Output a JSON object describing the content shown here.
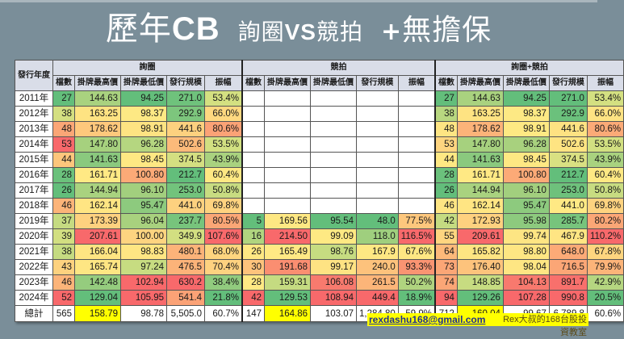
{
  "title": {
    "part1": "歷年",
    "part_cb": "CB",
    "part2": "詢圈",
    "part_vs": "VS",
    "part3": "競拍",
    "plus": "+",
    "part4": "無擔保"
  },
  "table": {
    "year_header": "發行年度",
    "groups": [
      "詢圈",
      "競拍",
      "詢圈+競拍"
    ],
    "columns": [
      "檔數",
      "掛牌最高價",
      "掛牌最低價",
      "發行規模",
      "振幅"
    ],
    "rows": [
      {
        "year": "2011年",
        "g1": [
          "27",
          "144.63",
          "94.25",
          "271.0",
          "53.4%"
        ],
        "g2": [
          "",
          "",
          "",
          "",
          ""
        ],
        "g3": [
          "27",
          "144.63",
          "94.25",
          "271.0",
          "53.4%"
        ]
      },
      {
        "year": "2012年",
        "g1": [
          "38",
          "163.25",
          "98.37",
          "292.9",
          "66.0%"
        ],
        "g2": [
          "",
          "",
          "",
          "",
          ""
        ],
        "g3": [
          "38",
          "163.25",
          "98.37",
          "292.9",
          "66.0%"
        ]
      },
      {
        "year": "2013年",
        "g1": [
          "48",
          "178.62",
          "98.91",
          "441.6",
          "80.6%"
        ],
        "g2": [
          "",
          "",
          "",
          "",
          ""
        ],
        "g3": [
          "48",
          "178.62",
          "98.91",
          "441.6",
          "80.6%"
        ]
      },
      {
        "year": "2014年",
        "g1": [
          "53",
          "147.80",
          "96.28",
          "502.6",
          "53.5%"
        ],
        "g2": [
          "",
          "",
          "",
          "",
          ""
        ],
        "g3": [
          "53",
          "147.80",
          "96.28",
          "502.6",
          "53.5%"
        ]
      },
      {
        "year": "2015年",
        "g1": [
          "44",
          "141.63",
          "98.45",
          "374.5",
          "43.9%"
        ],
        "g2": [
          "",
          "",
          "",
          "",
          ""
        ],
        "g3": [
          "44",
          "141.63",
          "98.45",
          "374.5",
          "43.9%"
        ]
      },
      {
        "year": "2016年",
        "g1": [
          "28",
          "161.71",
          "100.80",
          "212.7",
          "60.4%"
        ],
        "g2": [
          "",
          "",
          "",
          "",
          ""
        ],
        "g3": [
          "28",
          "161.71",
          "100.80",
          "212.7",
          "60.4%"
        ]
      },
      {
        "year": "2017年",
        "g1": [
          "26",
          "144.94",
          "96.10",
          "253.0",
          "50.8%"
        ],
        "g2": [
          "",
          "",
          "",
          "",
          ""
        ],
        "g3": [
          "26",
          "144.94",
          "96.10",
          "253.0",
          "50.8%"
        ]
      },
      {
        "year": "2018年",
        "g1": [
          "46",
          "162.14",
          "95.47",
          "441.0",
          "69.8%"
        ],
        "g2": [
          "",
          "",
          "",
          "",
          ""
        ],
        "g3": [
          "46",
          "162.14",
          "95.47",
          "441.0",
          "69.8%"
        ]
      },
      {
        "year": "2019年",
        "g1": [
          "37",
          "173.39",
          "96.04",
          "237.7",
          "80.5%"
        ],
        "g2": [
          "5",
          "169.56",
          "95.54",
          "48.0",
          "77.5%"
        ],
        "g3": [
          "42",
          "172.93",
          "95.98",
          "285.7",
          "80.2%"
        ]
      },
      {
        "year": "2020年",
        "g1": [
          "39",
          "207.61",
          "100.00",
          "349.9",
          "107.6%"
        ],
        "g2": [
          "16",
          "214.50",
          "99.09",
          "118.0",
          "116.5%"
        ],
        "g3": [
          "55",
          "209.61",
          "99.74",
          "467.9",
          "110.2%"
        ]
      },
      {
        "year": "2021年",
        "g1": [
          "38",
          "166.04",
          "98.83",
          "480.1",
          "68.0%"
        ],
        "g2": [
          "26",
          "165.49",
          "98.76",
          "167.9",
          "67.6%"
        ],
        "g3": [
          "64",
          "165.82",
          "98.80",
          "648.0",
          "67.8%"
        ]
      },
      {
        "year": "2022年",
        "g1": [
          "43",
          "165.74",
          "97.24",
          "476.5",
          "70.4%"
        ],
        "g2": [
          "30",
          "191.68",
          "99.17",
          "240.0",
          "93.3%"
        ],
        "g3": [
          "73",
          "176.40",
          "98.04",
          "716.5",
          "79.9%"
        ]
      },
      {
        "year": "2023年",
        "g1": [
          "46",
          "142.48",
          "102.94",
          "630.2",
          "38.4%"
        ],
        "g2": [
          "28",
          "159.31",
          "106.08",
          "261.5",
          "50.2%"
        ],
        "g3": [
          "74",
          "148.85",
          "104.13",
          "891.7",
          "42.9%"
        ]
      },
      {
        "year": "2024年",
        "g1": [
          "52",
          "129.04",
          "105.95",
          "541.4",
          "21.8%"
        ],
        "g2": [
          "42",
          "129.53",
          "108.94",
          "449.4",
          "18.9%"
        ],
        "g3": [
          "94",
          "129.26",
          "107.28",
          "990.8",
          "20.5%"
        ]
      }
    ],
    "total": {
      "label": "總計",
      "g1": [
        "565",
        "158.79",
        "98.78",
        "5,505.0",
        "60.7%"
      ],
      "g2": [
        "147",
        "164.86",
        "103.07",
        "1,284.80",
        "59.9%"
      ],
      "g3": [
        "712",
        "160.04",
        "99.67",
        "6,789.8",
        "60.6%"
      ]
    },
    "colors": {
      "g1": [
        [
          "#63be7b",
          "#a9d27f",
          "#63be7b",
          "#6fc27c",
          "#d4e081"
        ],
        [
          "#d4df81",
          "#fee382",
          "#fde984",
          "#7dc67d",
          "#fed880"
        ],
        [
          "#fba676",
          "#fec87c",
          "#fee382",
          "#fdd17f",
          "#fba276"
        ],
        [
          "#f8696b",
          "#a6d17e",
          "#b5d680",
          "#fcba7a",
          "#d2e081"
        ],
        [
          "#fdc67c",
          "#8ac97e",
          "#fee883",
          "#d4df81",
          "#a9d27f"
        ],
        [
          "#6bc17c",
          "#ffe984",
          "#fcaa77",
          "#63be7b",
          "#fee883"
        ],
        [
          "#63be7b",
          "#a9d27f",
          "#a2cf7e",
          "#72c37c",
          "#c8dc81"
        ],
        [
          "#fcb479",
          "#ffe583",
          "#8dca7e",
          "#fdd17f",
          "#fed380"
        ],
        [
          "#c5db81",
          "#fed17f",
          "#a8d17e",
          "#77c47c",
          "#fba676"
        ],
        [
          "#d2df81",
          "#f8696b",
          "#fdd480",
          "#d2df81",
          "#f8696b"
        ],
        [
          "#c5db81",
          "#fee582",
          "#fee683",
          "#fcb379",
          "#fed57f"
        ],
        [
          "#fdd27f",
          "#fee683",
          "#c7dc81",
          "#fcb379",
          "#fed280"
        ],
        [
          "#fcb479",
          "#95cc7e",
          "#f8696b",
          "#f8696b",
          "#91cb7e"
        ],
        [
          "#f8696b",
          "#63be7b",
          "#f8696b",
          "#fba276",
          "#63be7b"
        ]
      ],
      "g2": [
        [
          "#63be7b",
          "#fee883",
          "#63be7b",
          "#63be7b",
          "#fdc77d"
        ],
        [
          "#b0d57f",
          "#f8696b",
          "#fee983",
          "#9fcf7e",
          "#f8696b"
        ],
        [
          "#fee883",
          "#ffe984",
          "#c6dc81",
          "#fee883",
          "#fee783"
        ],
        [
          "#fdc37c",
          "#fa8e71",
          "#fee383",
          "#fdc27c",
          "#fa9472"
        ],
        [
          "#ffe984",
          "#c5db81",
          "#f87a6e",
          "#fcb579",
          "#b0d47f"
        ],
        [
          "#f8696b",
          "#63be7b",
          "#f8696b",
          "#f8696b",
          "#63be7b"
        ]
      ],
      "g3": [
        [
          "#63be7b",
          "#a9d27f",
          "#63be7b",
          "#63be7b",
          "#d4e081"
        ],
        [
          "#b8d780",
          "#fee382",
          "#fde984",
          "#6bc17c",
          "#fee383"
        ],
        [
          "#fee583",
          "#fcb379",
          "#fee983",
          "#fee282",
          "#fbaa77"
        ],
        [
          "#fed580",
          "#a6d17e",
          "#a8d17e",
          "#fee482",
          "#d2e081"
        ],
        [
          "#fee883",
          "#8ac97e",
          "#fee883",
          "#d9e082",
          "#a9d27f"
        ],
        [
          "#6bc17c",
          "#ffe984",
          "#fcaa77",
          "#63be7b",
          "#fee883"
        ],
        [
          "#63be7b",
          "#a9d27f",
          "#a2cf7e",
          "#6ec17c",
          "#c8dc81"
        ],
        [
          "#fee583",
          "#ffe583",
          "#8dca7e",
          "#ffe984",
          "#fed380"
        ],
        [
          "#c5db81",
          "#fed17f",
          "#8dca7e",
          "#77c47c",
          "#fba676"
        ],
        [
          "#fed580",
          "#f8696b",
          "#fde583",
          "#ffe583",
          "#f8696b"
        ],
        [
          "#fcb97a",
          "#fee582",
          "#fee683",
          "#fcaa77",
          "#fed57f"
        ],
        [
          "#fba676",
          "#fdc37c",
          "#fee683",
          "#fba676",
          "#fcb479"
        ],
        [
          "#fba676",
          "#c7dc81",
          "#f8796e",
          "#f8706c",
          "#b5d680"
        ],
        [
          "#f8696b",
          "#63be7b",
          "#f8696b",
          "#f8696b",
          "#63be7b"
        ]
      ]
    }
  },
  "footer": {
    "email": "rexdashu168@gmail.com",
    "author": "Rex大叔的168台股投資教室"
  }
}
